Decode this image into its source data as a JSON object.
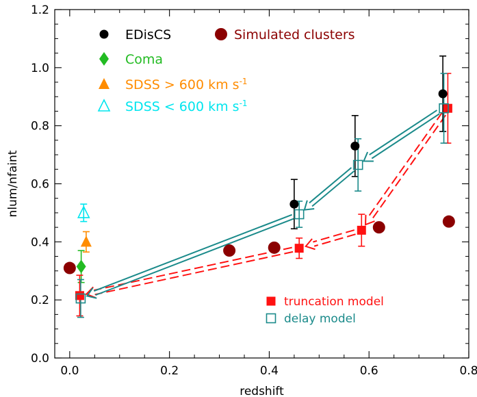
{
  "chart_data": {
    "type": "scatter",
    "xlabel": "redshift",
    "ylabel": "nlum/nfaint",
    "xlim": [
      -0.03,
      0.8
    ],
    "ylim": [
      0.0,
      1.2
    ],
    "x_ticks": [
      "0.0",
      "0.2",
      "0.4",
      "0.6",
      "0.8"
    ],
    "y_ticks": [
      "0.0",
      "0.2",
      "0.4",
      "0.6",
      "0.8",
      "1.0",
      "1.2"
    ],
    "legend_placement": "top-left",
    "model_legend_placement": "bottom-right",
    "colors": {
      "edisc": "#000000",
      "simulated": "#8b0000",
      "coma": "#22bb22",
      "sdss_high": "#ff8c00",
      "sdss_low": "#00e5ee",
      "truncation": "#ff1111",
      "delay": "#1a8a8a"
    },
    "series": [
      {
        "key": "edisc",
        "name": "EDisCS",
        "marker": "circle",
        "points": [
          {
            "x": 0.45,
            "y": 0.53,
            "err": 0.085
          },
          {
            "x": 0.572,
            "y": 0.73,
            "err": 0.105
          },
          {
            "x": 0.748,
            "y": 0.91,
            "err": 0.13
          }
        ]
      },
      {
        "key": "simulated",
        "name": "Simulated clusters",
        "marker": "big-circle",
        "points": [
          {
            "x": 0.0,
            "y": 0.31
          },
          {
            "x": 0.32,
            "y": 0.37
          },
          {
            "x": 0.41,
            "y": 0.38
          },
          {
            "x": 0.62,
            "y": 0.45
          },
          {
            "x": 0.76,
            "y": 0.47
          }
        ]
      },
      {
        "key": "coma",
        "name": "Coma",
        "marker": "diamond",
        "points": [
          {
            "x": 0.023,
            "y": 0.315,
            "err": 0.055
          }
        ]
      },
      {
        "key": "sdss_high",
        "name_parts": [
          "SDSS > 600 km s",
          "-1"
        ],
        "marker": "triangle-filled",
        "points": [
          {
            "x": 0.033,
            "y": 0.4,
            "err": 0.035
          }
        ]
      },
      {
        "key": "sdss_low",
        "name_parts": [
          "SDSS < 600 km s",
          "-1"
        ],
        "marker": "triangle-open",
        "points": [
          {
            "x": 0.028,
            "y": 0.5,
            "err": 0.03
          }
        ]
      }
    ],
    "models": [
      {
        "key": "truncation",
        "name": "truncation model",
        "marker": "square-filled",
        "points": [
          {
            "x": 0.02,
            "y": 0.215,
            "err": 0.07
          },
          {
            "x": 0.46,
            "y": 0.378,
            "err": 0.035
          },
          {
            "x": 0.585,
            "y": 0.44,
            "err": 0.055
          },
          {
            "x": 0.758,
            "y": 0.86,
            "err": 0.12
          }
        ]
      },
      {
        "key": "delay",
        "name": "delay model",
        "marker": "square-open",
        "points": [
          {
            "x": 0.022,
            "y": 0.205,
            "err": 0.065
          },
          {
            "x": 0.46,
            "y": 0.495,
            "err": 0.045
          },
          {
            "x": 0.578,
            "y": 0.665,
            "err": 0.09
          },
          {
            "x": 0.75,
            "y": 0.86,
            "err": 0.12
          }
        ]
      }
    ]
  }
}
